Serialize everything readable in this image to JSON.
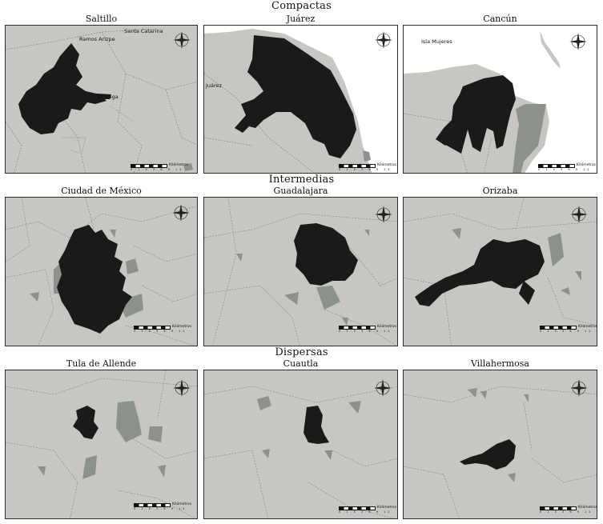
{
  "groups": [
    {
      "title": "Compactas",
      "maps": [
        {
          "name": "Saltillo",
          "labels": [
            "Ramos Arizpe",
            "Santa Catarina",
            "Arteaga"
          ]
        },
        {
          "name": "Juárez",
          "labels": [
            "Juárez"
          ]
        },
        {
          "name": "Cancún",
          "labels": [
            "Isla Mujeres"
          ]
        }
      ]
    },
    {
      "title": "Intermedias",
      "maps": [
        {
          "name": "Ciudad de México",
          "labels": []
        },
        {
          "name": "Guadalajara",
          "labels": []
        },
        {
          "name": "Orizaba",
          "labels": []
        }
      ]
    },
    {
      "title": "Dispersas",
      "maps": [
        {
          "name": "Tula de Allende",
          "labels": []
        },
        {
          "name": "Cuautla",
          "labels": []
        },
        {
          "name": "Villahermosa",
          "labels": []
        }
      ]
    }
  ],
  "scale": {
    "ticks": "0 1.5 3 6 9 12",
    "unit": "Kilómetros"
  },
  "colors": {
    "urban": "#1a1a1a",
    "peripheral": "#8c928b",
    "land": "#c7c6c2",
    "water": "#ffffff"
  }
}
